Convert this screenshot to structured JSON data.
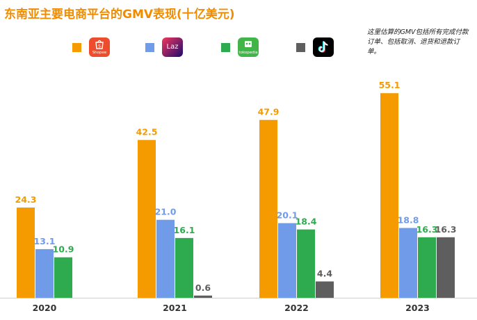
{
  "header": {
    "title": "东南亚主要电商平台的GMV表现(十亿美元)",
    "note": "这里估算的GMV包括所有完成付款订单、包括取消、退货和退款订单。"
  },
  "legend": [
    {
      "name": "Shopee",
      "logo_text": "Shopee",
      "icon": "shopee-bag-icon",
      "color": "#f59b00"
    },
    {
      "name": "Lazada",
      "logo_text": "Laz",
      "icon": "lazada-logo-icon",
      "color": "#6f9be8"
    },
    {
      "name": "Tokopedia",
      "logo_text": "tokopedia",
      "icon": "tokopedia-bag-icon",
      "color": "#2eab4f"
    },
    {
      "name": "TikTok",
      "logo_text": "",
      "icon": "tiktok-note-icon",
      "color": "#5e5e5e"
    }
  ],
  "chart_data": {
    "type": "bar",
    "categories": [
      "2020",
      "2021",
      "2022",
      "2023"
    ],
    "series": [
      {
        "values": [
          24.3,
          42.5,
          47.9,
          55.1
        ],
        "labels": [
          "24.3",
          "42.5",
          "47.9",
          "55.1"
        ],
        "color": "#f59b00"
      },
      {
        "values": [
          13.1,
          21.0,
          20.1,
          18.8
        ],
        "labels": [
          "13.1",
          "21.0",
          "20.1",
          "18.8"
        ],
        "color": "#6f9be8"
      },
      {
        "values": [
          10.9,
          16.1,
          18.4,
          16.3
        ],
        "labels": [
          "10.9",
          "16.1",
          "18.4",
          "16.3"
        ],
        "color": "#2eab4f"
      },
      {
        "values": [
          null,
          0.6,
          4.4,
          16.3
        ],
        "labels": [
          null,
          "0.6",
          "4.4",
          "16.3"
        ],
        "color": "#5e5e5e"
      }
    ],
    "ylim": [
      0,
      60
    ],
    "grid": false,
    "legend_position": "top",
    "title": "东南亚主要电商平台的GMV表现(十亿美元)"
  }
}
